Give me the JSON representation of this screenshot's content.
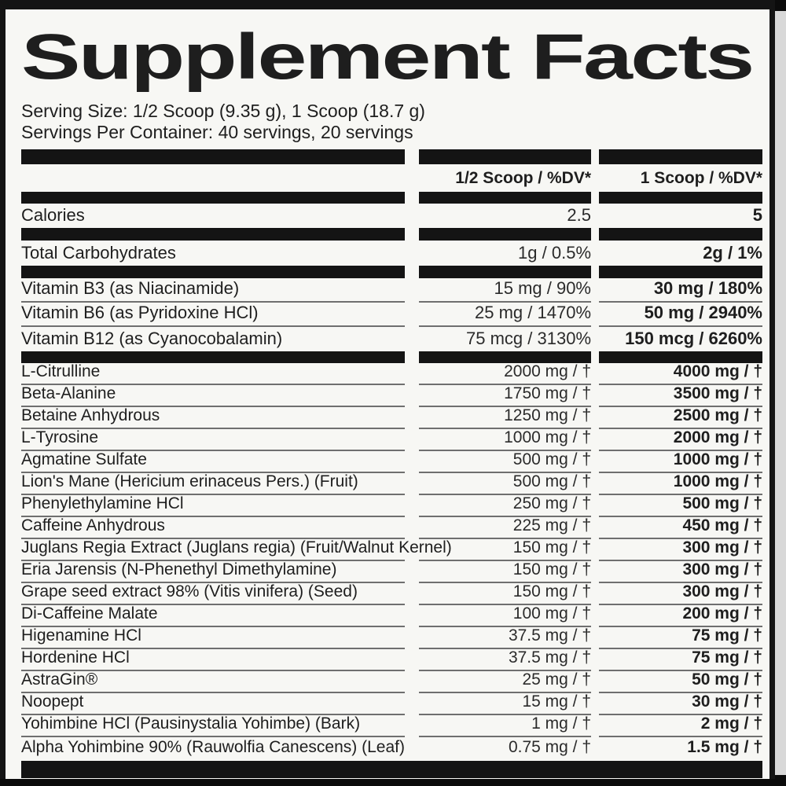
{
  "colors": {
    "outer_bg": "#0b0b0b",
    "panel_bg": "#f7f7f4",
    "bar": "#141414",
    "text": "#1e1e1e",
    "underline": "#6f6f6f",
    "side_strip": "#d8d8d8"
  },
  "label": {
    "title": "Supplement Facts",
    "serving_size": "Serving Size: 1/2 Scoop (9.35 g), 1 Scoop (18.7 g)",
    "servings_per_container": "Servings Per Container: 40 servings, 20 servings",
    "columns": {
      "half": "1/2 Scoop / %DV*",
      "full": "1 Scoop / %DV*"
    },
    "calories": {
      "name": "Calories",
      "half": "2.5",
      "full": "5"
    },
    "carbs": {
      "name": "Total Carbohydrates",
      "half": "1g / 0.5%",
      "full": "2g / 1%"
    },
    "vitamins": [
      {
        "name": "Vitamin B3 (as Niacinamide)",
        "half": "15 mg / 90%",
        "full": "30 mg / 180%"
      },
      {
        "name": "Vitamin B6 (as Pyridoxine HCl)",
        "half": "25 mg / 1470%",
        "full": "50 mg / 2940%"
      },
      {
        "name": "Vitamin B12 (as Cyanocobalamin)",
        "half": "75 mcg / 3130%",
        "full": "150 mcg / 6260%"
      }
    ],
    "ingredients": [
      {
        "name": "L-Citrulline",
        "half": "2000 mg / †",
        "full": "4000 mg / †"
      },
      {
        "name": "Beta-Alanine",
        "half": "1750 mg / †",
        "full": "3500 mg / †"
      },
      {
        "name": "Betaine Anhydrous",
        "half": "1250 mg / †",
        "full": "2500 mg / †"
      },
      {
        "name": "L-Tyrosine",
        "half": "1000 mg / †",
        "full": "2000 mg / †"
      },
      {
        "name": "Agmatine Sulfate",
        "half": "500 mg / †",
        "full": "1000 mg / †"
      },
      {
        "name": "Lion's Mane (Hericium erinaceus Pers.) (Fruit)",
        "half": "500 mg / †",
        "full": "1000 mg / †"
      },
      {
        "name": "Phenylethylamine HCl",
        "half": "250 mg / †",
        "full": "500 mg / †"
      },
      {
        "name": "Caffeine Anhydrous",
        "half": "225 mg / †",
        "full": "450 mg / †"
      },
      {
        "name": "Juglans Regia Extract (Juglans regia) (Fruit/Walnut Kernel)",
        "half": "150 mg / †",
        "full": "300 mg / †"
      },
      {
        "name": "Eria Jarensis (N-Phenethyl Dimethylamine)",
        "half": "150 mg / †",
        "full": "300 mg / †"
      },
      {
        "name": "Grape seed extract 98% (Vitis vinifera) (Seed)",
        "half": "150 mg / †",
        "full": "300 mg / †"
      },
      {
        "name": "Di-Caffeine Malate",
        "half": "100 mg / †",
        "full": "200 mg / †"
      },
      {
        "name": "Higenamine HCl",
        "half": "37.5 mg / †",
        "full": "75 mg / †"
      },
      {
        "name": "Hordenine HCl",
        "half": "37.5 mg / †",
        "full": "75 mg / †"
      },
      {
        "name": "AstraGin®",
        "half": "25 mg / †",
        "full": "50 mg / †"
      },
      {
        "name": "Noopept",
        "half": "15 mg / †",
        "full": "30 mg / †"
      },
      {
        "name": "Yohimbine HCl (Pausinystalia Yohimbe) (Bark)",
        "half": "1 mg / †",
        "full": "2 mg / †"
      },
      {
        "name": "Alpha Yohimbine 90% (Rauwolfia Canescens) (Leaf)",
        "half": "0.75 mg / †",
        "full": "1.5 mg / †"
      }
    ]
  }
}
